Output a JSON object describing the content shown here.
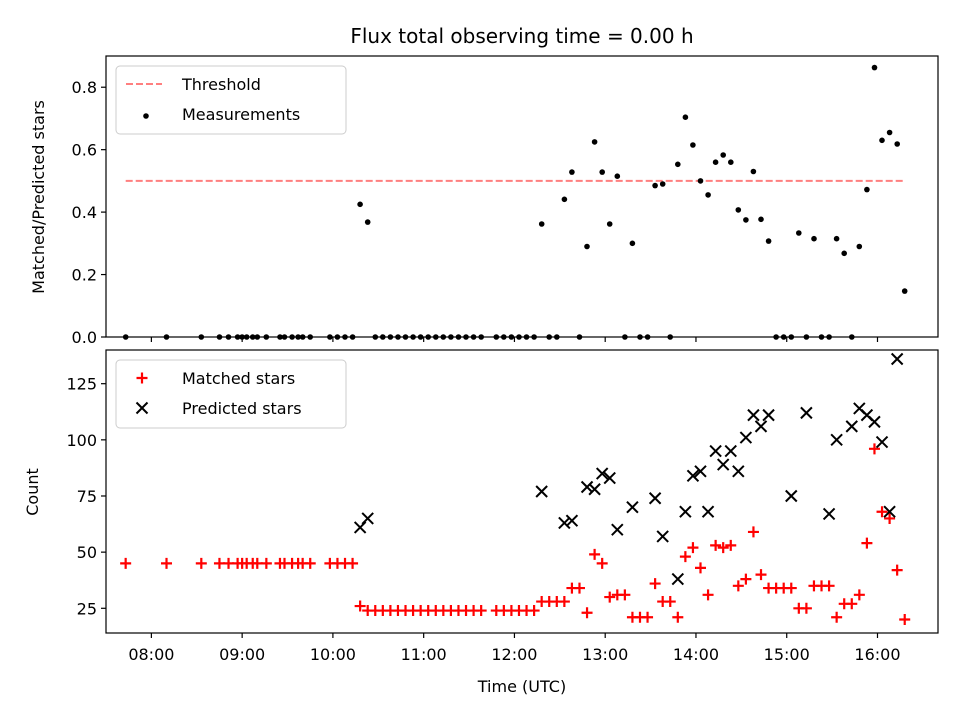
{
  "chart_data": [
    {
      "type": "scatter",
      "title": "Flux total observing time = 0.00 h",
      "xlabel": "",
      "ylabel": "Matched/Predicted stars",
      "ylim": [
        0,
        0.9
      ],
      "xlim": [
        "07:30",
        "16:40"
      ],
      "yticks": [
        "0.0",
        "0.2",
        "0.4",
        "0.6",
        "0.8"
      ],
      "legend_position": "top-left",
      "series": [
        {
          "name": "Threshold",
          "style": "dashed-line",
          "color": "#ff7f7f",
          "x": [
            "07:43",
            "16:17"
          ],
          "y": [
            0.5,
            0.5
          ]
        },
        {
          "name": "Measurements",
          "style": "dot",
          "color": "#000000",
          "points": [
            [
              "07:43",
              0.0
            ],
            [
              "08:10",
              0.0
            ],
            [
              "08:33",
              0.0
            ],
            [
              "08:45",
              0.0
            ],
            [
              "08:51",
              0.0
            ],
            [
              "08:57",
              0.0
            ],
            [
              "09:00",
              0.0
            ],
            [
              "09:03",
              0.0
            ],
            [
              "09:07",
              0.0
            ],
            [
              "09:10",
              0.0
            ],
            [
              "09:16",
              0.0
            ],
            [
              "09:25",
              0.0
            ],
            [
              "09:28",
              0.0
            ],
            [
              "09:33",
              0.0
            ],
            [
              "09:37",
              0.0
            ],
            [
              "09:40",
              0.0
            ],
            [
              "09:45",
              0.0
            ],
            [
              "09:58",
              0.0
            ],
            [
              "10:03",
              0.0
            ],
            [
              "10:08",
              0.0
            ],
            [
              "10:13",
              0.0
            ],
            [
              "10:18",
              0.425
            ],
            [
              "10:23",
              0.368
            ],
            [
              "10:28",
              0.0
            ],
            [
              "10:33",
              0.0
            ],
            [
              "10:38",
              0.0
            ],
            [
              "10:43",
              0.0
            ],
            [
              "10:48",
              0.0
            ],
            [
              "10:53",
              0.0
            ],
            [
              "10:58",
              0.0
            ],
            [
              "11:03",
              0.0
            ],
            [
              "11:08",
              0.0
            ],
            [
              "11:13",
              0.0
            ],
            [
              "11:18",
              0.0
            ],
            [
              "11:23",
              0.0
            ],
            [
              "11:28",
              0.0
            ],
            [
              "11:33",
              0.0
            ],
            [
              "11:38",
              0.0
            ],
            [
              "11:48",
              0.0
            ],
            [
              "11:53",
              0.0
            ],
            [
              "11:58",
              0.0
            ],
            [
              "12:03",
              0.0
            ],
            [
              "12:08",
              0.0
            ],
            [
              "12:13",
              0.0
            ],
            [
              "12:18",
              0.362
            ],
            [
              "12:23",
              0.0
            ],
            [
              "12:28",
              0.0
            ],
            [
              "12:33",
              0.441
            ],
            [
              "12:38",
              0.528
            ],
            [
              "12:43",
              0.0
            ],
            [
              "12:48",
              0.29
            ],
            [
              "12:53",
              0.625
            ],
            [
              "12:58",
              0.528
            ],
            [
              "13:03",
              0.362
            ],
            [
              "13:08",
              0.515
            ],
            [
              "13:13",
              0.0
            ],
            [
              "13:18",
              0.3
            ],
            [
              "13:23",
              0.0
            ],
            [
              "13:28",
              0.0
            ],
            [
              "13:33",
              0.485
            ],
            [
              "13:38",
              0.49
            ],
            [
              "13:43",
              0.0
            ],
            [
              "13:48",
              0.553
            ],
            [
              "13:53",
              0.704
            ],
            [
              "13:58",
              0.615
            ],
            [
              "14:03",
              0.5
            ],
            [
              "14:08",
              0.455
            ],
            [
              "14:13",
              0.56
            ],
            [
              "14:18",
              0.583
            ],
            [
              "14:23",
              0.56
            ],
            [
              "14:28",
              0.407
            ],
            [
              "14:33",
              0.375
            ],
            [
              "14:38",
              0.53
            ],
            [
              "14:43",
              0.377
            ],
            [
              "14:48",
              0.307
            ],
            [
              "14:53",
              0.0
            ],
            [
              "14:58",
              0.0
            ],
            [
              "15:03",
              0.0
            ],
            [
              "15:08",
              0.333
            ],
            [
              "15:13",
              0.0
            ],
            [
              "15:18",
              0.315
            ],
            [
              "15:23",
              0.0
            ],
            [
              "15:28",
              0.0
            ],
            [
              "15:33",
              0.315
            ],
            [
              "15:38",
              0.268
            ],
            [
              "15:43",
              0.0
            ],
            [
              "15:48",
              0.29
            ],
            [
              "15:53",
              0.472
            ],
            [
              "15:58",
              0.863
            ],
            [
              "16:03",
              0.63
            ],
            [
              "16:08",
              0.655
            ],
            [
              "16:13",
              0.618
            ],
            [
              "16:18",
              0.147
            ]
          ]
        }
      ]
    },
    {
      "type": "scatter",
      "title": "",
      "xlabel": "Time (UTC)",
      "ylabel": "Count",
      "ylim": [
        14,
        140
      ],
      "xlim": [
        "07:30",
        "16:40"
      ],
      "xticks": [
        "08:00",
        "09:00",
        "10:00",
        "11:00",
        "12:00",
        "13:00",
        "14:00",
        "15:00",
        "16:00"
      ],
      "yticks": [
        "25",
        "50",
        "75",
        "100",
        "125"
      ],
      "legend_position": "top-left",
      "series": [
        {
          "name": "Matched stars",
          "style": "plus",
          "color": "#ff0000",
          "points": [
            [
              "07:43",
              45
            ],
            [
              "08:10",
              45
            ],
            [
              "08:33",
              45
            ],
            [
              "08:45",
              45
            ],
            [
              "08:51",
              45
            ],
            [
              "08:57",
              45
            ],
            [
              "09:00",
              45
            ],
            [
              "09:03",
              45
            ],
            [
              "09:07",
              45
            ],
            [
              "09:10",
              45
            ],
            [
              "09:16",
              45
            ],
            [
              "09:25",
              45
            ],
            [
              "09:28",
              45
            ],
            [
              "09:33",
              45
            ],
            [
              "09:37",
              45
            ],
            [
              "09:40",
              45
            ],
            [
              "09:45",
              45
            ],
            [
              "09:58",
              45
            ],
            [
              "10:03",
              45
            ],
            [
              "10:08",
              45
            ],
            [
              "10:13",
              45
            ],
            [
              "10:18",
              26
            ],
            [
              "10:23",
              24
            ],
            [
              "10:28",
              24
            ],
            [
              "10:33",
              24
            ],
            [
              "10:38",
              24
            ],
            [
              "10:43",
              24
            ],
            [
              "10:48",
              24
            ],
            [
              "10:53",
              24
            ],
            [
              "10:58",
              24
            ],
            [
              "11:03",
              24
            ],
            [
              "11:08",
              24
            ],
            [
              "11:13",
              24
            ],
            [
              "11:18",
              24
            ],
            [
              "11:23",
              24
            ],
            [
              "11:28",
              24
            ],
            [
              "11:33",
              24
            ],
            [
              "11:38",
              24
            ],
            [
              "11:48",
              24
            ],
            [
              "11:53",
              24
            ],
            [
              "11:58",
              24
            ],
            [
              "12:03",
              24
            ],
            [
              "12:08",
              24
            ],
            [
              "12:13",
              24
            ],
            [
              "12:18",
              28
            ],
            [
              "12:23",
              28
            ],
            [
              "12:28",
              28
            ],
            [
              "12:33",
              28
            ],
            [
              "12:38",
              34
            ],
            [
              "12:43",
              34
            ],
            [
              "12:48",
              23
            ],
            [
              "12:53",
              49
            ],
            [
              "12:58",
              45
            ],
            [
              "13:03",
              30
            ],
            [
              "13:08",
              31
            ],
            [
              "13:13",
              31
            ],
            [
              "13:18",
              21
            ],
            [
              "13:23",
              21
            ],
            [
              "13:28",
              21
            ],
            [
              "13:33",
              36
            ],
            [
              "13:38",
              28
            ],
            [
              "13:43",
              28
            ],
            [
              "13:48",
              21
            ],
            [
              "13:53",
              48
            ],
            [
              "13:58",
              52
            ],
            [
              "14:03",
              43
            ],
            [
              "14:08",
              31
            ],
            [
              "14:13",
              53
            ],
            [
              "14:18",
              52
            ],
            [
              "14:23",
              53
            ],
            [
              "14:28",
              35
            ],
            [
              "14:33",
              38
            ],
            [
              "14:38",
              59
            ],
            [
              "14:43",
              40
            ],
            [
              "14:48",
              34
            ],
            [
              "14:53",
              34
            ],
            [
              "14:58",
              34
            ],
            [
              "15:03",
              34
            ],
            [
              "15:08",
              25
            ],
            [
              "15:13",
              25
            ],
            [
              "15:18",
              35
            ],
            [
              "15:23",
              35
            ],
            [
              "15:28",
              35
            ],
            [
              "15:33",
              21
            ],
            [
              "15:38",
              27
            ],
            [
              "15:43",
              27
            ],
            [
              "15:48",
              31
            ],
            [
              "15:53",
              54
            ],
            [
              "15:58",
              96
            ],
            [
              "16:03",
              68
            ],
            [
              "16:08",
              65
            ],
            [
              "16:13",
              42
            ],
            [
              "16:18",
              20
            ]
          ]
        },
        {
          "name": "Predicted stars",
          "style": "x",
          "color": "#000000",
          "points": [
            [
              "10:18",
              61
            ],
            [
              "10:23",
              65
            ],
            [
              "12:18",
              77
            ],
            [
              "12:33",
              63
            ],
            [
              "12:38",
              64
            ],
            [
              "12:48",
              79
            ],
            [
              "12:53",
              78
            ],
            [
              "12:58",
              85
            ],
            [
              "13:03",
              83
            ],
            [
              "13:08",
              60
            ],
            [
              "13:18",
              70
            ],
            [
              "13:33",
              74
            ],
            [
              "13:38",
              57
            ],
            [
              "13:48",
              38
            ],
            [
              "13:53",
              68
            ],
            [
              "13:58",
              84
            ],
            [
              "14:03",
              86
            ],
            [
              "14:08",
              68
            ],
            [
              "14:13",
              95
            ],
            [
              "14:18",
              89
            ],
            [
              "14:23",
              95
            ],
            [
              "14:28",
              86
            ],
            [
              "14:33",
              101
            ],
            [
              "14:38",
              111
            ],
            [
              "14:43",
              106
            ],
            [
              "14:48",
              111
            ],
            [
              "15:03",
              75
            ],
            [
              "15:13",
              112
            ],
            [
              "15:28",
              67
            ],
            [
              "15:33",
              100
            ],
            [
              "15:43",
              106
            ],
            [
              "15:48",
              114
            ],
            [
              "15:53",
              111
            ],
            [
              "15:58",
              108
            ],
            [
              "16:03",
              99
            ],
            [
              "16:08",
              68
            ],
            [
              "16:13",
              136
            ]
          ]
        }
      ]
    }
  ]
}
